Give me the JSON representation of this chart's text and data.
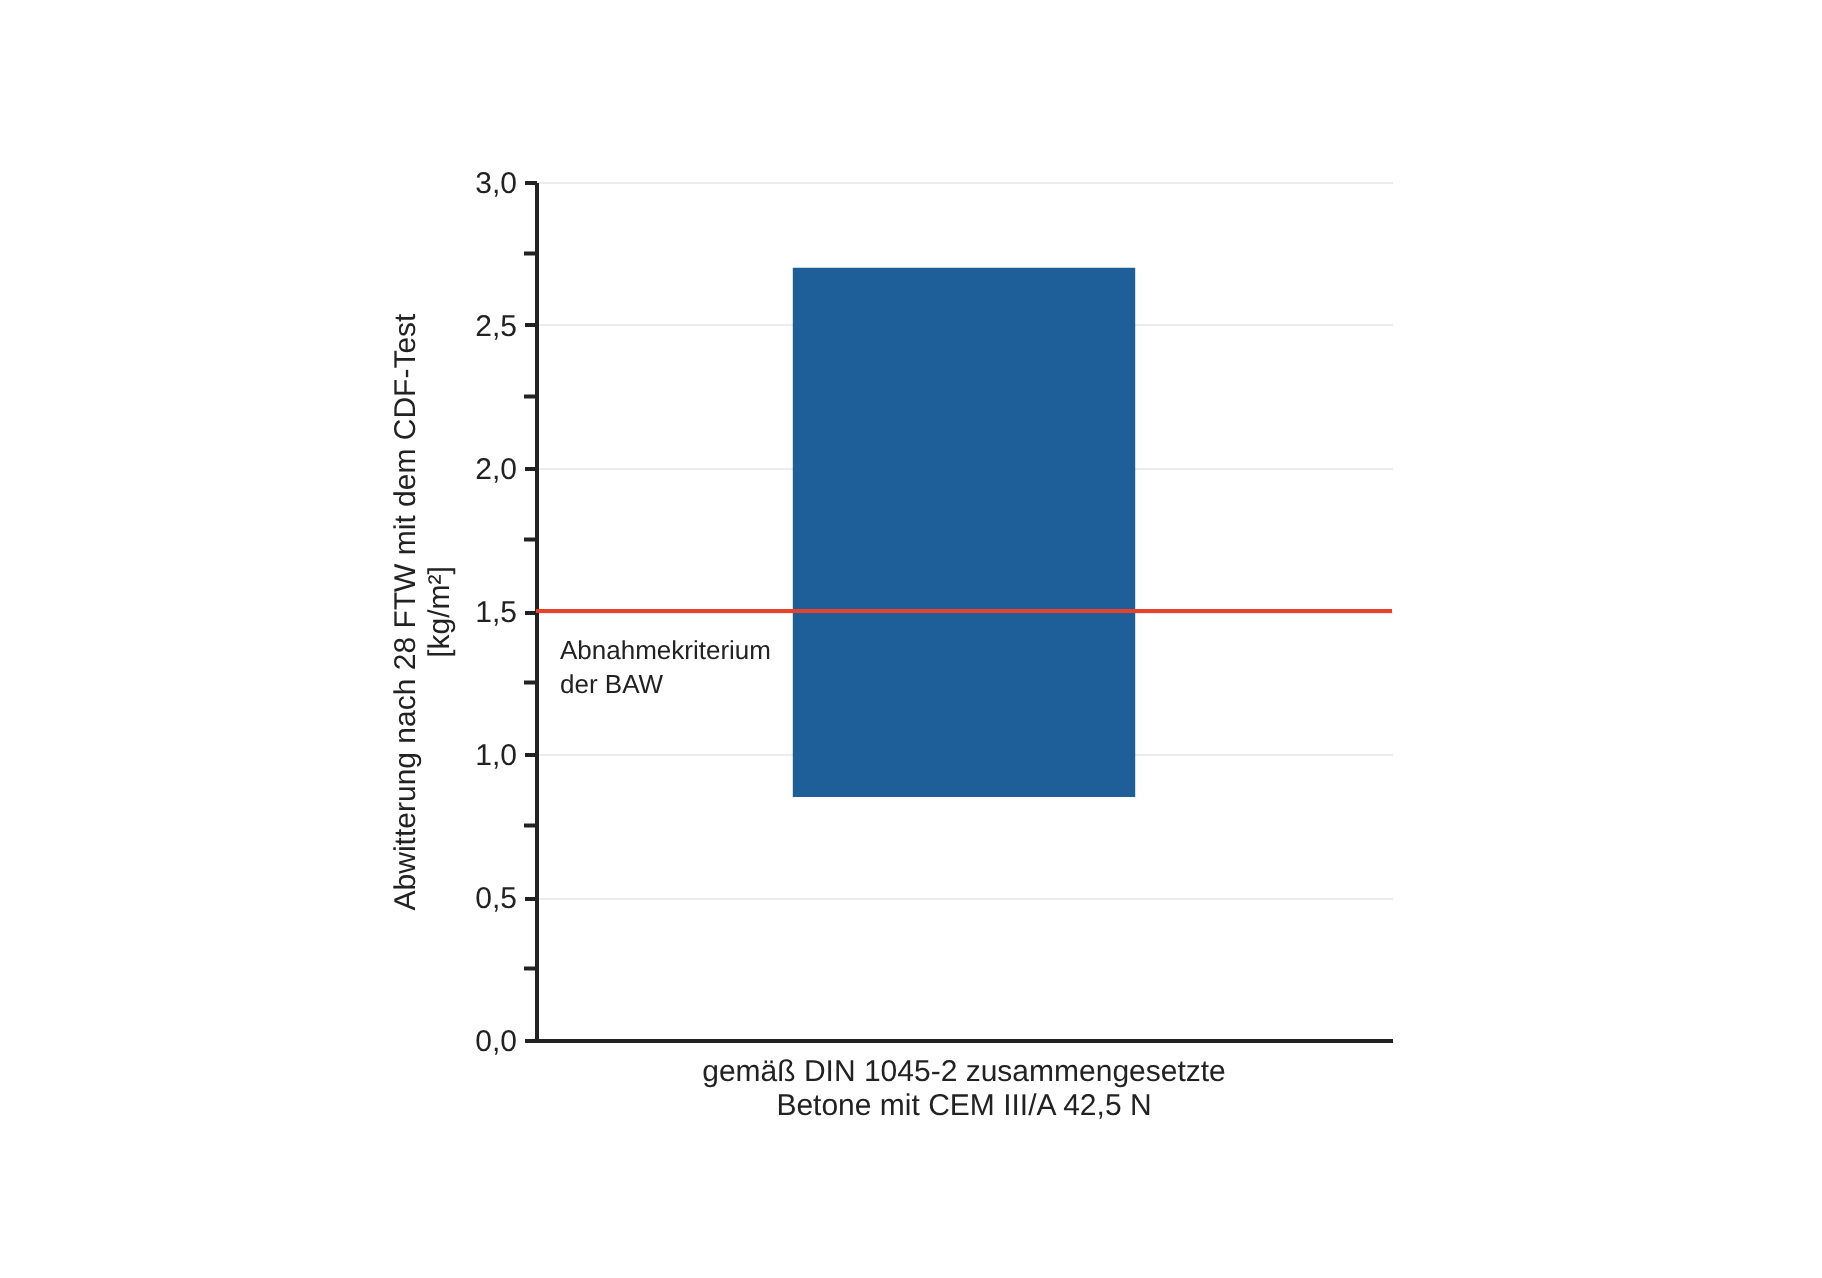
{
  "chart_data": {
    "type": "bar",
    "ylabel": "Abwitterung nach 28 FTW mit dem CDF-Test\n[kg/m²]",
    "categories": [
      "gemäß DIN 1045-2 zusammengesetzte\nBetone mit CEM III/A 42,5 N"
    ],
    "values": [
      1.85
    ],
    "base": [
      0.85
    ],
    "color": "#1f5f99",
    "ylim": [
      0,
      3
    ],
    "yticks": [
      {
        "value": 0,
        "label": "0,0"
      },
      {
        "value": 0.25,
        "label": null
      },
      {
        "value": 0.5,
        "label": "0,5"
      },
      {
        "value": 0.75,
        "label": null
      },
      {
        "value": 1,
        "label": "1,0"
      },
      {
        "value": 1.25,
        "label": null
      },
      {
        "value": 1.5,
        "label": "1,5"
      },
      {
        "value": 1.75,
        "label": null
      },
      {
        "value": 2,
        "label": "2,0"
      },
      {
        "value": 2.25,
        "label": null
      },
      {
        "value": 2.5,
        "label": "2,5"
      },
      {
        "value": 2.75,
        "label": null
      },
      {
        "value": 3,
        "label": "3,0"
      }
    ],
    "grid": "y",
    "ref_lines": [
      {
        "axis": "y",
        "value": 1.5,
        "label": "Abnahmekriterium\nder BAW",
        "color": "#e8412c"
      }
    ]
  }
}
